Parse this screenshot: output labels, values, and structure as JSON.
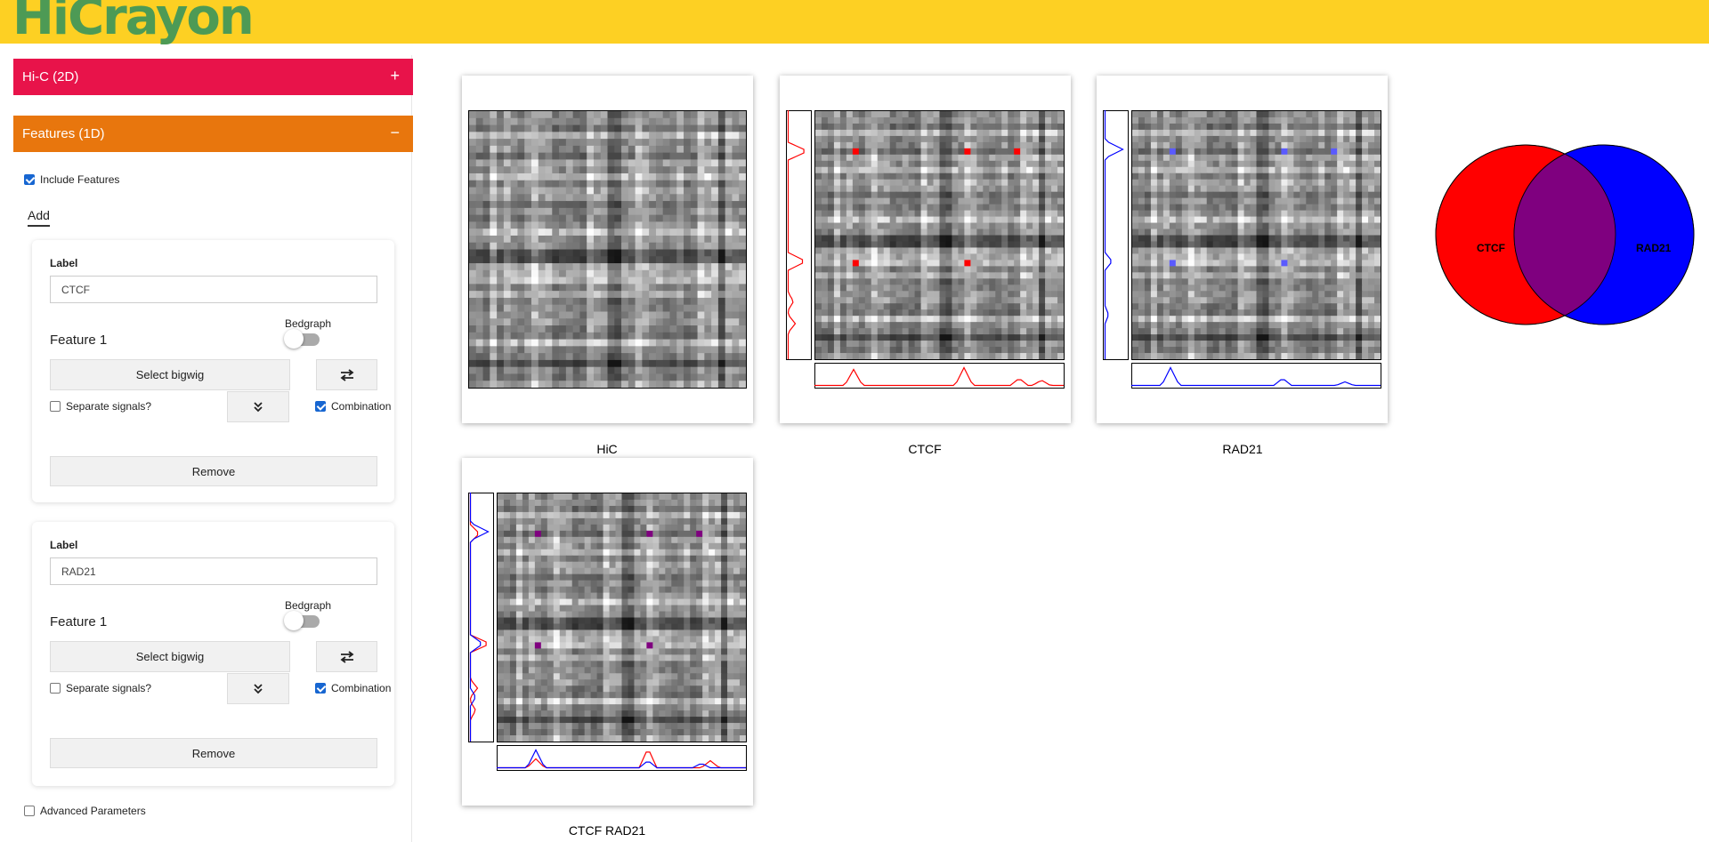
{
  "app": {
    "logo": "HiCrayon"
  },
  "sidebar": {
    "hic_panel": {
      "title": "Hi-C (2D)",
      "symbol": "+"
    },
    "features_panel": {
      "title": "Features (1D)",
      "symbol": "−"
    },
    "include_features": {
      "label": "Include Features",
      "checked": true
    },
    "add_tab": "Add",
    "cards": [
      {
        "label_heading": "Label",
        "label_value": "CTCF",
        "feature": "Feature 1",
        "bedgraph": "Bedgraph",
        "select_bigwig": "Select bigwig",
        "separate": "Separate signals?",
        "combination": "Combination",
        "remove": "Remove"
      },
      {
        "label_heading": "Label",
        "label_value": "RAD21",
        "feature": "Feature 1",
        "bedgraph": "Bedgraph",
        "select_bigwig": "Select bigwig",
        "separate": "Separate signals?",
        "combination": "Combination",
        "remove": "Remove"
      }
    ],
    "advanced": {
      "label": "Advanced Parameters",
      "checked": false
    }
  },
  "plots": {
    "hic": "HiC",
    "ctcf": "CTCF",
    "rad21": "RAD21",
    "combined": "CTCF RAD21"
  },
  "venn": {
    "left": "CTCF",
    "right": "RAD21"
  },
  "colors": {
    "topbar": "#fdd023",
    "logo": "#4d9a55",
    "hic_panel": "#e8134a",
    "features_panel": "#e8760d",
    "ctcf": "#ff0000",
    "rad21": "#0000ff",
    "overlap": "#7f007f"
  }
}
